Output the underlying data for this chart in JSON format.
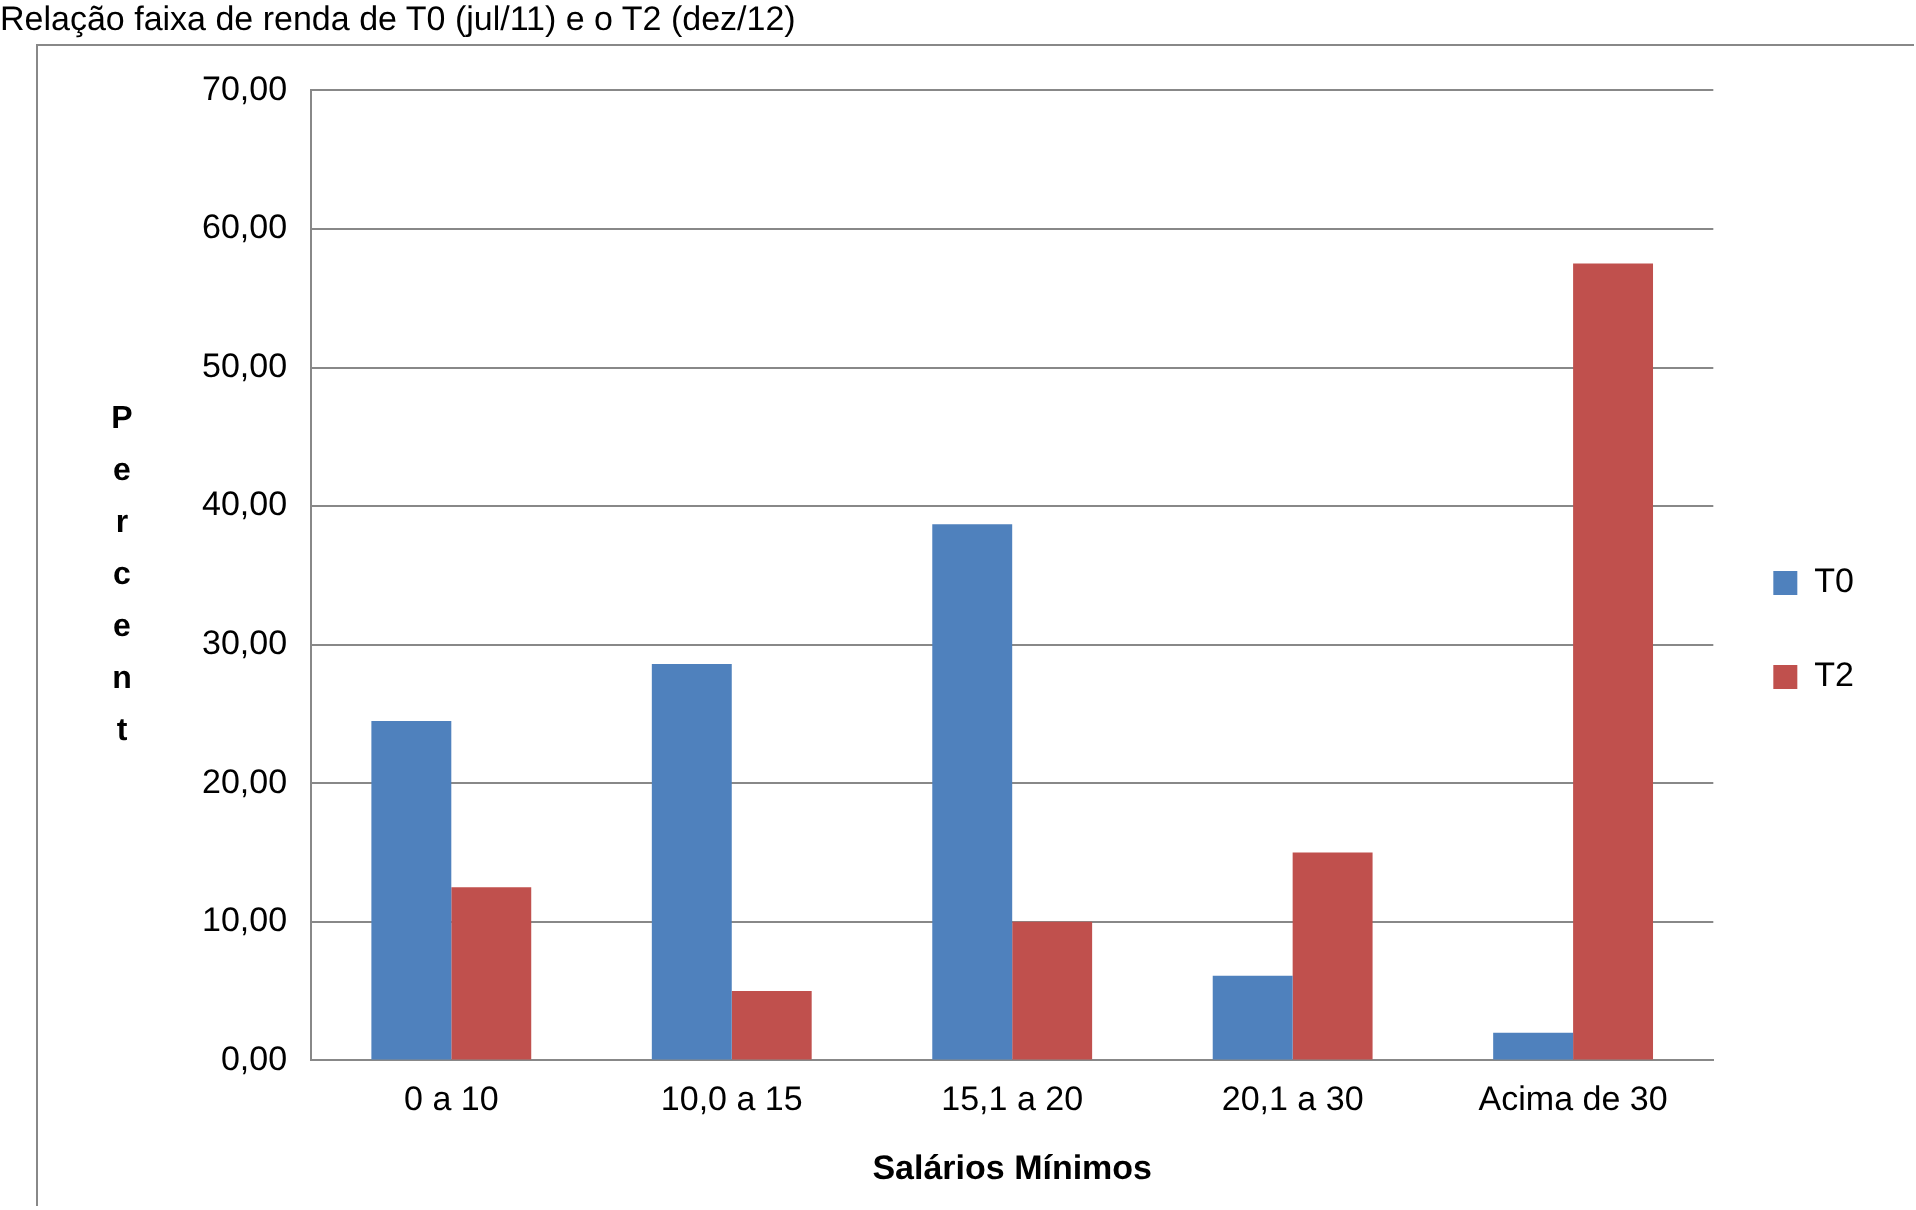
{
  "chart_data": {
    "type": "bar",
    "title": "Relação faixa de renda de T0 (jul/11) e o T2 (dez/12)",
    "xlabel": "Salários Mínimos",
    "ylabel": "Percent",
    "categories": [
      "0 a 10",
      "10,0 a 15",
      "15,1 a 20",
      "20,1 a 30",
      "Acima de 30"
    ],
    "series": [
      {
        "name": "T0",
        "color": "#4f81bd",
        "values": [
          24.5,
          28.6,
          38.7,
          6.1,
          2.0
        ]
      },
      {
        "name": "T2",
        "color": "#c0504d",
        "values": [
          12.5,
          5.0,
          10.0,
          15.0,
          57.5
        ]
      }
    ],
    "ylim": [
      0,
      70
    ],
    "yticks": [
      {
        "value": 0,
        "label": "0,00"
      },
      {
        "value": 10,
        "label": "10,00"
      },
      {
        "value": 20,
        "label": "20,00"
      },
      {
        "value": 30,
        "label": "30,00"
      },
      {
        "value": 40,
        "label": "40,00"
      },
      {
        "value": 50,
        "label": "50,00"
      },
      {
        "value": 60,
        "label": "60,00"
      },
      {
        "value": 70,
        "label": "70,00"
      }
    ],
    "grid": "y",
    "legend": "right"
  }
}
